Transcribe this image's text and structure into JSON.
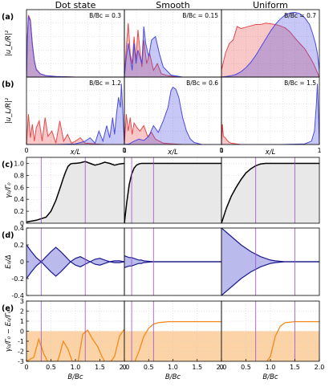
{
  "columns": [
    "Dot state",
    "Smooth",
    "Uniform"
  ],
  "colors": {
    "red": "#e8474a",
    "blue": "#4a4ae0",
    "orange": "#f28b1c",
    "purple_line": "#9b4fd0",
    "black": "#000000",
    "navy": "#1a1a8c"
  },
  "chart_data": [
    {
      "panel": "(a)",
      "type": "area",
      "ylabel": "|u_L/R|²",
      "annotations": [
        "B/B_c = 0.3",
        "B/B_c = 0.15",
        "B/B_c = 0.7"
      ],
      "series": [
        {
          "column": 0,
          "name": "L",
          "color": "red",
          "x": [
            0,
            0.01,
            0.02,
            0.04,
            0.06,
            0.08,
            0.1,
            0.14,
            0.2,
            0.3,
            0.5,
            0.7,
            1.0
          ],
          "y": [
            0,
            0.6,
            0.92,
            0.85,
            0.5,
            0.25,
            0.12,
            0.05,
            0.02,
            0.01,
            0,
            0,
            0
          ]
        },
        {
          "column": 0,
          "name": "R",
          "color": "blue",
          "x": [
            0,
            0.01,
            0.02,
            0.04,
            0.06,
            0.08,
            0.1,
            0.14,
            0.2,
            0.3,
            0.5,
            0.7,
            1.0
          ],
          "y": [
            0,
            0.58,
            0.9,
            0.83,
            0.48,
            0.24,
            0.11,
            0.05,
            0.02,
            0.01,
            0,
            0,
            0
          ]
        },
        {
          "column": 1,
          "name": "L",
          "color": "red",
          "x": [
            0,
            0.02,
            0.04,
            0.06,
            0.08,
            0.1,
            0.12,
            0.14,
            0.16,
            0.18,
            0.2,
            0.23,
            0.26,
            0.3,
            0.34,
            0.38,
            0.45,
            0.55,
            0.7,
            1.0
          ],
          "y": [
            0,
            0.45,
            0.8,
            0.35,
            0.2,
            0.6,
            0.25,
            0.7,
            0.4,
            0.15,
            0.55,
            0.2,
            0.35,
            0.1,
            0.2,
            0.05,
            0.02,
            0,
            0,
            0
          ]
        },
        {
          "column": 1,
          "name": "R",
          "color": "blue",
          "x": [
            0,
            0.02,
            0.04,
            0.06,
            0.08,
            0.1,
            0.12,
            0.14,
            0.16,
            0.18,
            0.2,
            0.22,
            0.25,
            0.28,
            0.32,
            0.36,
            0.4,
            0.48,
            0.6,
            1.0
          ],
          "y": [
            0,
            0.3,
            0.5,
            0.3,
            0.1,
            0.5,
            0.2,
            0.4,
            0.3,
            0.2,
            0.75,
            0.5,
            0.3,
            0.55,
            0.6,
            0.35,
            0.15,
            0.03,
            0,
            0
          ]
        },
        {
          "column": 2,
          "name": "L",
          "color": "red",
          "x": [
            0,
            0.04,
            0.08,
            0.12,
            0.16,
            0.2,
            0.25,
            0.3,
            0.35,
            0.4,
            0.45,
            0.5,
            0.55,
            0.6,
            0.65,
            0.7,
            0.75,
            0.8,
            0.85,
            0.88,
            0.91,
            0.94,
            0.97,
            1.0
          ],
          "y": [
            0.1,
            0.35,
            0.5,
            0.55,
            0.75,
            0.72,
            0.74,
            0.76,
            0.78,
            0.78,
            0.8,
            0.79,
            0.78,
            0.76,
            0.73,
            0.67,
            0.58,
            0.5,
            0.42,
            0.35,
            0.28,
            0.2,
            0.1,
            0
          ]
        },
        {
          "column": 2,
          "name": "R",
          "color": "blue",
          "x": [
            0,
            0.05,
            0.1,
            0.15,
            0.2,
            0.25,
            0.3,
            0.35,
            0.4,
            0.45,
            0.5,
            0.55,
            0.6,
            0.65,
            0.7,
            0.75,
            0.8,
            0.85,
            0.9,
            0.93,
            0.96,
            0.98,
            1.0
          ],
          "y": [
            0,
            0.01,
            0.02,
            0.04,
            0.08,
            0.14,
            0.22,
            0.32,
            0.44,
            0.56,
            0.68,
            0.78,
            0.86,
            0.92,
            0.95,
            0.96,
            0.94,
            0.88,
            0.78,
            0.65,
            0.5,
            0.35,
            0.1
          ]
        }
      ],
      "ylim": [
        0,
        1
      ],
      "xlim": [
        0,
        1
      ],
      "grid": true
    },
    {
      "panel": "(b)",
      "type": "area",
      "ylabel": "|u_L/R|²",
      "xlabel": "x/L",
      "xticks": [
        "0",
        "1"
      ],
      "annotations": [
        "B/B_c = 1.2",
        "B/B_c = 0.6",
        "B/B_c = 1.5"
      ],
      "series": [
        {
          "column": 0,
          "name": "L",
          "color": "red",
          "x": [
            0,
            0.02,
            0.04,
            0.06,
            0.08,
            0.1,
            0.13,
            0.16,
            0.19,
            0.22,
            0.26,
            0.3,
            0.34,
            0.38,
            0.42,
            0.46,
            0.5,
            0.55,
            0.6,
            0.7,
            0.8,
            0.9,
            1.0
          ],
          "y": [
            0,
            0.45,
            0.1,
            0.3,
            0.05,
            0.25,
            0.35,
            0.05,
            0.4,
            0.12,
            0.2,
            0.02,
            0.35,
            0.05,
            0.15,
            0.02,
            0.05,
            0.1,
            0.02,
            0.01,
            0,
            0,
            0
          ]
        },
        {
          "column": 0,
          "name": "R",
          "color": "blue",
          "x": [
            0,
            0.3,
            0.5,
            0.6,
            0.65,
            0.7,
            0.74,
            0.78,
            0.82,
            0.85,
            0.88,
            0.9,
            0.92,
            0.94,
            0.96,
            0.97,
            0.98,
            0.99,
            1.0
          ],
          "y": [
            0,
            0,
            0.01,
            0.05,
            0.1,
            0.02,
            0.2,
            0.05,
            0.28,
            0.1,
            0.4,
            0.15,
            0.45,
            0.7,
            0.55,
            0.9,
            0.6,
            0.3,
            0
          ]
        },
        {
          "column": 1,
          "name": "L",
          "color": "red",
          "x": [
            0,
            0.02,
            0.04,
            0.06,
            0.08,
            0.1,
            0.13,
            0.16,
            0.2,
            0.24,
            0.28,
            0.32,
            0.36,
            0.4,
            0.5,
            0.6,
            1.0
          ],
          "y": [
            0,
            0.45,
            0.2,
            0.4,
            0.15,
            0.32,
            0.25,
            0.2,
            0.28,
            0.12,
            0.18,
            0.08,
            0.05,
            0.02,
            0.01,
            0,
            0
          ]
        },
        {
          "column": 1,
          "name": "R",
          "color": "blue",
          "x": [
            0,
            0.05,
            0.1,
            0.15,
            0.2,
            0.25,
            0.3,
            0.35,
            0.4,
            0.45,
            0.48,
            0.5,
            0.53,
            0.56,
            0.6,
            0.64,
            0.68,
            0.72,
            0.8,
            1.0
          ],
          "y": [
            0,
            0.01,
            0.05,
            0.08,
            0.06,
            0.12,
            0.28,
            0.18,
            0.35,
            0.55,
            0.8,
            0.85,
            0.82,
            0.7,
            0.4,
            0.2,
            0.08,
            0.03,
            0,
            0
          ]
        },
        {
          "column": 2,
          "name": "L",
          "color": "red",
          "x": [
            0,
            0.01,
            0.02,
            0.04,
            0.06,
            0.08,
            0.1,
            0.15,
            0.2,
            0.4,
            1.0
          ],
          "y": [
            0,
            0.3,
            0.12,
            0.1,
            0.06,
            0.03,
            0.02,
            0.01,
            0,
            0,
            0
          ]
        },
        {
          "column": 2,
          "name": "R",
          "color": "blue",
          "x": [
            0,
            0.6,
            0.85,
            0.92,
            0.95,
            0.97,
            0.98,
            0.99,
            1.0
          ],
          "y": [
            0,
            0,
            0.01,
            0.05,
            0.2,
            0.6,
            0.9,
            0.5,
            0
          ]
        }
      ],
      "ylim": [
        0,
        1
      ],
      "xlim": [
        0,
        1
      ],
      "grid": true
    },
    {
      "panel": "(c)",
      "type": "line",
      "ylabel": "γ₀/Γ₀",
      "yticks": [
        "0",
        "0.2",
        "0.4",
        "0.6",
        "0.8",
        "1.0"
      ],
      "ylim": [
        0,
        1.1
      ],
      "xlim": [
        0,
        2
      ],
      "vlines": [
        [
          0.3,
          1.2
        ],
        [
          0.15,
          0.6
        ],
        [
          0.7,
          1.5
        ]
      ],
      "series": [
        {
          "column": 0,
          "name": "",
          "color": "black",
          "x": [
            0,
            0.2,
            0.4,
            0.5,
            0.6,
            0.7,
            0.75,
            0.8,
            0.85,
            0.9,
            0.95,
            1.0,
            1.1,
            1.2,
            1.3,
            1.4,
            1.5,
            1.6,
            1.7,
            1.8,
            1.9,
            2.0
          ],
          "y": [
            0.02,
            0.05,
            0.1,
            0.2,
            0.38,
            0.62,
            0.75,
            0.86,
            0.95,
            0.99,
            1.0,
            1.0,
            1.01,
            1.03,
            1.0,
            0.97,
            0.99,
            1.02,
            1.0,
            0.97,
            0.99,
            1.0
          ]
        },
        {
          "column": 1,
          "name": "",
          "color": "black",
          "x": [
            0,
            0.05,
            0.1,
            0.15,
            0.2,
            0.25,
            0.3,
            0.35,
            0.4,
            0.5,
            0.7,
            1.0,
            1.5,
            2.0
          ],
          "y": [
            0,
            0.35,
            0.65,
            0.82,
            0.92,
            0.97,
            0.99,
            1.0,
            1.0,
            1.0,
            1.0,
            1.0,
            1.0,
            1.0
          ]
        },
        {
          "column": 2,
          "name": "",
          "color": "black",
          "x": [
            0,
            0.1,
            0.2,
            0.3,
            0.4,
            0.5,
            0.6,
            0.7,
            0.8,
            0.9,
            1.0,
            1.2,
            1.5,
            2.0
          ],
          "y": [
            0,
            0.25,
            0.45,
            0.6,
            0.73,
            0.84,
            0.91,
            0.96,
            0.99,
            1.0,
            1.0,
            1.0,
            1.0,
            1.0
          ]
        }
      ]
    },
    {
      "panel": "(d)",
      "type": "area",
      "ylabel": "E₀/Δ",
      "yticks": [
        "-0.4",
        "-0.2",
        "0",
        "0.2",
        "0.4"
      ],
      "ylim": [
        -0.4,
        0.4
      ],
      "xlim": [
        0,
        2
      ],
      "vlines": [
        [
          0.3,
          1.2
        ],
        [
          0.15,
          0.6
        ],
        [
          0.7,
          1.5
        ]
      ],
      "series": [
        {
          "column": 0,
          "name": "",
          "color": "navy",
          "x": [
            0,
            0.1,
            0.2,
            0.3,
            0.4,
            0.5,
            0.6,
            0.7,
            0.8,
            0.9,
            1.0,
            1.1,
            1.2,
            1.3,
            1.4,
            1.5,
            1.6,
            1.7,
            1.8,
            1.9,
            2.0
          ],
          "y": [
            0.2,
            0.12,
            0.05,
            0.0,
            0.06,
            0.12,
            0.17,
            0.12,
            0.06,
            0.0,
            0.04,
            0.06,
            0.03,
            0.0,
            0.03,
            0.04,
            0.02,
            0.0,
            0.01,
            0.01,
            0.0
          ]
        },
        {
          "column": 1,
          "name": "",
          "color": "navy",
          "x": [
            0,
            0.05,
            0.1,
            0.15,
            0.2,
            0.25,
            0.3,
            0.35,
            0.4,
            0.5,
            0.6,
            0.8,
            1.0,
            1.5,
            2.0
          ],
          "y": [
            0.07,
            0.06,
            0.05,
            0.05,
            0.04,
            0.03,
            0.02,
            0.02,
            0.01,
            0.005,
            0,
            0,
            0,
            0,
            0
          ]
        },
        {
          "column": 2,
          "name": "",
          "color": "navy",
          "x": [
            0,
            0.2,
            0.4,
            0.6,
            0.8,
            1.0,
            1.1,
            1.2,
            1.3,
            1.5,
            2.0
          ],
          "y": [
            0.4,
            0.3,
            0.2,
            0.12,
            0.06,
            0.02,
            0.01,
            0.005,
            0,
            0,
            0
          ]
        }
      ]
    },
    {
      "panel": "(e)",
      "type": "line",
      "ylabel": "γ₀/Γ₀ − E₀/Γ₀",
      "xlabel": "B/B_c",
      "xticks": [
        "0",
        "0.5",
        "1.0",
        "1.5",
        "2.0"
      ],
      "yticks": [
        "-3",
        "-2",
        "-1",
        "0",
        "1",
        "2",
        "3"
      ],
      "ylim": [
        -3,
        3
      ],
      "xlim": [
        0,
        2
      ],
      "shaded_band": [
        -3,
        0
      ],
      "vlines": [
        [
          0.3,
          1.2
        ],
        [
          0.15,
          0.6
        ],
        [
          0.7,
          1.5
        ]
      ],
      "series": [
        {
          "column": 0,
          "name": "",
          "color": "orange",
          "x": [
            0,
            0.15,
            0.25,
            0.35,
            0.45,
            0.55,
            0.62,
            0.68,
            0.75,
            0.85,
            0.95,
            1.05,
            1.15,
            1.25,
            1.35,
            1.45,
            1.55,
            1.62,
            1.7,
            1.8,
            1.9,
            2.0
          ],
          "y": [
            -3,
            -2.6,
            -0.8,
            -2.2,
            -3.2,
            -3.2,
            -3.2,
            -2.3,
            -1.0,
            -1.8,
            -3.2,
            -3.2,
            -0.3,
            0.1,
            -0.8,
            -1.5,
            -2.6,
            -3.2,
            -3.2,
            -2.5,
            -0.5,
            0.2
          ]
        },
        {
          "column": 1,
          "name": "",
          "color": "orange",
          "x": [
            0,
            0.1,
            0.2,
            0.3,
            0.4,
            0.5,
            0.6,
            0.7,
            0.8,
            0.9,
            1.0,
            1.5,
            2.0
          ],
          "y": [
            -3.2,
            -3.2,
            -3.2,
            -2.0,
            -0.5,
            0.3,
            0.7,
            0.85,
            0.9,
            0.95,
            0.95,
            0.95,
            0.95
          ]
        },
        {
          "column": 2,
          "name": "",
          "color": "orange",
          "x": [
            0,
            0.5,
            0.8,
            0.9,
            1.0,
            1.1,
            1.2,
            1.3,
            1.5,
            2.0
          ],
          "y": [
            -3.2,
            -3.2,
            -3.2,
            -3.2,
            -2.5,
            -0.5,
            0.5,
            0.85,
            0.95,
            0.95
          ]
        }
      ]
    }
  ]
}
